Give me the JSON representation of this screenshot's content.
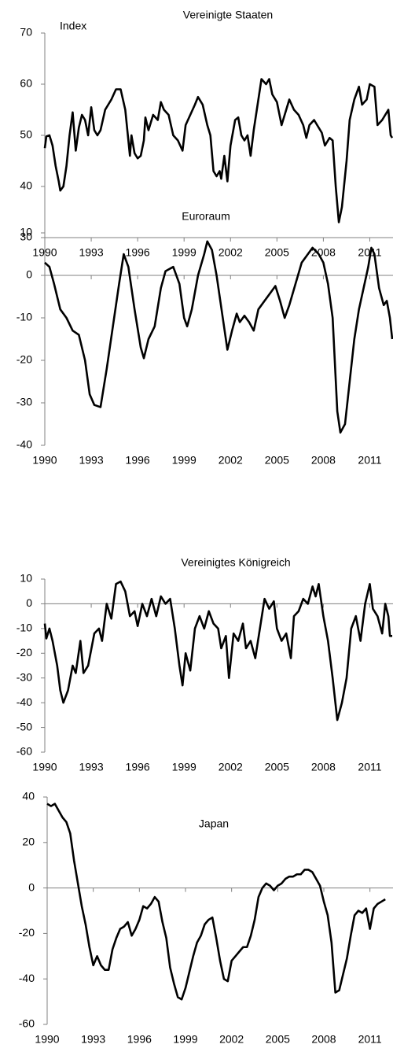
{
  "chart_data": [
    {
      "type": "line",
      "title": "Vereinigte Staaten",
      "ylabel": "Index",
      "color": "#000000",
      "xlim": [
        1990,
        2012.5
      ],
      "xticks": [
        1990,
        1993,
        1996,
        1999,
        2002,
        2005,
        2008,
        2011
      ],
      "ylim": [
        30,
        70
      ],
      "yticks": [
        30,
        40,
        50,
        60,
        70
      ],
      "x": [
        1990,
        1990.1,
        1990.3,
        1990.5,
        1990.7,
        1990.9,
        1991.0,
        1991.2,
        1991.4,
        1991.6,
        1991.8,
        1992.0,
        1992.2,
        1992.4,
        1992.6,
        1992.8,
        1993.0,
        1993.2,
        1993.4,
        1993.6,
        1993.9,
        1994.3,
        1994.6,
        1994.9,
        1995.2,
        1995.5,
        1995.6,
        1995.8,
        1996.0,
        1996.2,
        1996.4,
        1996.5,
        1996.7,
        1997.0,
        1997.3,
        1997.5,
        1997.7,
        1998.0,
        1998.3,
        1998.6,
        1998.9,
        1999.1,
        1999.4,
        1999.7,
        1999.9,
        2000.2,
        2000.5,
        2000.7,
        2000.9,
        2001.1,
        2001.3,
        2001.4,
        2001.6,
        2001.8,
        2002.0,
        2002.3,
        2002.5,
        2002.7,
        2002.9,
        2003.1,
        2003.3,
        2003.5,
        2003.7,
        2004.0,
        2004.3,
        2004.5,
        2004.7,
        2005.0,
        2005.3,
        2005.5,
        2005.8,
        2006.1,
        2006.4,
        2006.7,
        2006.9,
        2007.1,
        2007.4,
        2007.7,
        2007.9,
        2008.1,
        2008.4,
        2008.6,
        2008.8,
        2009.0,
        2009.2,
        2009.5,
        2009.7,
        2010.0,
        2010.3,
        2010.5,
        2010.8,
        2011.0,
        2011.3,
        2011.5,
        2011.8,
        2012.0,
        2012.2,
        2012.35,
        2012.45
      ],
      "values": [
        47.5,
        49.8,
        50,
        48,
        44,
        41,
        39.2,
        40,
        44,
        50,
        54.5,
        47,
        51.5,
        54,
        53,
        50,
        55.5,
        51,
        50,
        51,
        55,
        57,
        59,
        59,
        55,
        46,
        50,
        46.5,
        45.5,
        46,
        49,
        53.5,
        51,
        54,
        53,
        56.5,
        55,
        54,
        50,
        49,
        47,
        52,
        54,
        56,
        57.5,
        56,
        52,
        50,
        43,
        42,
        43,
        41.5,
        46,
        41,
        48,
        53,
        53.5,
        50,
        49,
        50,
        46,
        51,
        55,
        61,
        60,
        61,
        58,
        56.5,
        52,
        54,
        57,
        55,
        54,
        52,
        49.5,
        52,
        53,
        51.5,
        50.5,
        48,
        49.5,
        49,
        40,
        33,
        36,
        45,
        53,
        57,
        59.5,
        56,
        57,
        60,
        59.5,
        52,
        53,
        54,
        55,
        50,
        49.5
      ]
    },
    {
      "type": "line",
      "title": "Euroraum",
      "color": "#000000",
      "xlim": [
        1990,
        2012.5
      ],
      "xticks": [
        1990,
        1993,
        1996,
        1999,
        2002,
        2005,
        2008,
        2011
      ],
      "ylim": [
        -40,
        10
      ],
      "yticks": [
        -40,
        -30,
        -20,
        -10,
        0,
        10
      ],
      "x": [
        1990,
        1990.3,
        1990.6,
        1991.0,
        1991.4,
        1991.8,
        1992.2,
        1992.6,
        1992.9,
        1993.2,
        1993.6,
        1994.0,
        1994.4,
        1994.8,
        1995.1,
        1995.4,
        1995.8,
        1996.2,
        1996.4,
        1996.7,
        1997.1,
        1997.5,
        1997.8,
        1998.3,
        1998.7,
        1999.0,
        1999.2,
        1999.5,
        1999.9,
        2000.3,
        2000.5,
        2000.8,
        2001.1,
        2001.5,
        2001.8,
        2002.1,
        2002.4,
        2002.6,
        2002.9,
        2003.2,
        2003.5,
        2003.8,
        2004.2,
        2004.6,
        2004.9,
        2005.2,
        2005.5,
        2005.8,
        2006.2,
        2006.6,
        2007.0,
        2007.3,
        2007.7,
        2008.0,
        2008.3,
        2008.6,
        2008.9,
        2009.1,
        2009.4,
        2009.7,
        2010.0,
        2010.3,
        2010.6,
        2010.9,
        2011.1,
        2011.3,
        2011.6,
        2011.9,
        2012.1,
        2012.3,
        2012.45
      ],
      "values": [
        3,
        2,
        -2,
        -8,
        -10,
        -13,
        -14,
        -20,
        -28,
        -30.5,
        -31,
        -22,
        -12,
        -2,
        5,
        2,
        -8,
        -17,
        -19.5,
        -15,
        -12,
        -3,
        1,
        2,
        -2,
        -10,
        -12,
        -8,
        0,
        5,
        8,
        6,
        0,
        -10,
        -17.5,
        -13,
        -9,
        -11,
        -9.5,
        -11,
        -13,
        -8,
        -6,
        -4,
        -2.5,
        -6,
        -10,
        -7,
        -2,
        3,
        5,
        6.5,
        5,
        3,
        -2,
        -10,
        -32,
        -37,
        -35,
        -25,
        -15,
        -8,
        -3,
        2,
        6.5,
        5,
        -3,
        -7,
        -6,
        -10,
        -15
      ]
    },
    {
      "type": "line",
      "title": "Vereinigtes Königreich",
      "color": "#000000",
      "xlim": [
        1990,
        2012.5
      ],
      "xticks": [
        1990,
        1993,
        1996,
        1999,
        2002,
        2005,
        2008,
        2011
      ],
      "ylim": [
        -60,
        10
      ],
      "yticks": [
        -60,
        -50,
        -40,
        -30,
        -20,
        -10,
        0,
        10
      ],
      "x": [
        1990,
        1990.1,
        1990.3,
        1990.5,
        1990.8,
        1991.0,
        1991.2,
        1991.5,
        1991.8,
        1992.0,
        1992.3,
        1992.5,
        1992.8,
        1993.2,
        1993.5,
        1993.7,
        1994.0,
        1994.3,
        1994.6,
        1994.9,
        1995.2,
        1995.5,
        1995.8,
        1996.0,
        1996.3,
        1996.6,
        1996.9,
        1997.2,
        1997.5,
        1997.8,
        1998.1,
        1998.4,
        1998.7,
        1998.9,
        1999.1,
        1999.4,
        1999.7,
        2000.0,
        2000.3,
        2000.6,
        2000.9,
        2001.2,
        2001.4,
        2001.7,
        2001.9,
        2002.2,
        2002.5,
        2002.8,
        2003.0,
        2003.3,
        2003.6,
        2003.9,
        2004.2,
        2004.5,
        2004.8,
        2005.0,
        2005.3,
        2005.6,
        2005.9,
        2006.1,
        2006.4,
        2006.7,
        2007.0,
        2007.3,
        2007.5,
        2007.7,
        2008.0,
        2008.3,
        2008.6,
        2008.9,
        2009.2,
        2009.5,
        2009.8,
        2010.1,
        2010.4,
        2010.7,
        2011.0,
        2011.2,
        2011.5,
        2011.8,
        2012.0,
        2012.2,
        2012.3,
        2012.45
      ],
      "values": [
        -8,
        -14,
        -10,
        -15,
        -25,
        -35,
        -40,
        -35,
        -25,
        -28,
        -15,
        -28,
        -25,
        -12,
        -10,
        -15,
        0,
        -6,
        8,
        9,
        5,
        -5,
        -3,
        -9,
        0,
        -5,
        2,
        -5,
        3,
        0,
        2,
        -10,
        -25,
        -33,
        -20,
        -27,
        -10,
        -5,
        -10,
        -3,
        -8,
        -10,
        -18,
        -13,
        -30,
        -12,
        -15,
        -8,
        -18,
        -15,
        -22,
        -10,
        2,
        -2,
        1,
        -10,
        -15,
        -12,
        -22,
        -5,
        -3,
        2,
        0,
        7,
        3,
        8,
        -5,
        -15,
        -30,
        -47,
        -40,
        -30,
        -10,
        -5,
        -15,
        0,
        8,
        -2,
        -5,
        -12,
        0,
        -5,
        -13,
        -13
      ]
    },
    {
      "type": "line",
      "title": "Japan",
      "color": "#000000",
      "xlim": [
        1990,
        2012.5
      ],
      "xticks": [
        1990,
        1993,
        1996,
        1999,
        2002,
        2005,
        2008,
        2011
      ],
      "ylim": [
        -60,
        40
      ],
      "yticks": [
        -60,
        -40,
        -20,
        0,
        20,
        40
      ],
      "x": [
        1990,
        1990.25,
        1990.5,
        1990.75,
        1991.0,
        1991.25,
        1991.5,
        1991.75,
        1992.0,
        1992.25,
        1992.5,
        1992.75,
        1993.0,
        1993.25,
        1993.5,
        1993.75,
        1994.0,
        1994.25,
        1994.5,
        1994.75,
        1995.0,
        1995.25,
        1995.5,
        1995.75,
        1996.0,
        1996.25,
        1996.5,
        1996.75,
        1997.0,
        1997.25,
        1997.5,
        1997.75,
        1998.0,
        1998.25,
        1998.5,
        1998.75,
        1999.0,
        1999.25,
        1999.5,
        1999.75,
        2000.0,
        2000.25,
        2000.5,
        2000.75,
        2001.0,
        2001.25,
        2001.5,
        2001.75,
        2002.0,
        2002.25,
        2002.5,
        2002.75,
        2003.0,
        2003.25,
        2003.5,
        2003.75,
        2004.0,
        2004.25,
        2004.5,
        2004.75,
        2005.0,
        2005.25,
        2005.5,
        2005.75,
        2006.0,
        2006.25,
        2006.5,
        2006.75,
        2007.0,
        2007.25,
        2007.5,
        2007.75,
        2008.0,
        2008.25,
        2008.5,
        2008.75,
        2009.0,
        2009.25,
        2009.5,
        2009.75,
        2010.0,
        2010.25,
        2010.5,
        2010.75,
        2011.0,
        2011.25,
        2011.5,
        2011.75,
        2012.0
      ],
      "values": [
        37,
        36,
        37,
        34,
        31,
        29,
        24,
        12,
        2,
        -8,
        -16,
        -26,
        -34,
        -30,
        -34,
        -36,
        -36,
        -27,
        -22,
        -18,
        -17,
        -15,
        -21,
        -18,
        -14,
        -8,
        -9,
        -7,
        -4,
        -6,
        -15,
        -22,
        -35,
        -42,
        -48,
        -49,
        -44,
        -37,
        -30,
        -24,
        -21,
        -16,
        -14,
        -13,
        -22,
        -32,
        -40,
        -41,
        -32,
        -30,
        -28,
        -26,
        -26,
        -21,
        -14,
        -4,
        0,
        2,
        1,
        -1,
        1,
        2,
        4,
        5,
        5,
        6,
        6,
        8,
        8,
        7,
        4,
        1,
        -6,
        -12,
        -24,
        -46,
        -45,
        -38,
        -31,
        -21,
        -12,
        -10,
        -11,
        -9,
        -18,
        -9,
        -7,
        -6,
        -5
      ]
    }
  ]
}
